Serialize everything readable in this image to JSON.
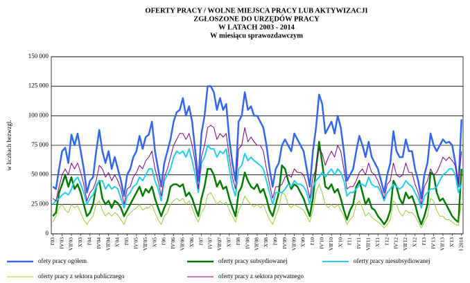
{
  "chart_data": {
    "type": "line",
    "title": [
      "OFERTY PRACY / WOLNE MIEJSCA  PRACY  LUB  AKTYWIZACJI",
      "ZGŁOSZONE  DO  URZĘDÓW  PRACY",
      "W  LATACH  2003 - 2014"
    ],
    "subtitle": "W  miesiącu  sprawozdawczym",
    "ylabel": "w liczbach bezwzgl.",
    "ylim": [
      0,
      150000
    ],
    "yticks": [
      0,
      {
        "value": 25000,
        "label": "25 000"
      },
      {
        "value": 50000,
        "label": "50 000"
      },
      {
        "value": 75000,
        "label": "75 000"
      },
      {
        "value": 100000,
        "label": "100 000"
      },
      {
        "value": 125000,
        "label": "125 000"
      },
      {
        "value": 150000,
        "label": "150 000"
      }
    ],
    "grid": true,
    "legend": "bottom",
    "categories": [
      "I'03",
      null,
      null,
      "IV'03",
      null,
      null,
      "VII'03",
      null,
      null,
      "X'03",
      null,
      null,
      "I'04",
      null,
      null,
      "IV'04",
      null,
      null,
      "VII'04",
      null,
      null,
      "X'04",
      null,
      null,
      "I'05",
      null,
      null,
      "IV'05",
      null,
      null,
      "VII'05",
      null,
      null,
      "X'05",
      null,
      null,
      "I'06",
      null,
      null,
      "IV'06",
      null,
      null,
      "VII'06",
      null,
      null,
      "X'06",
      null,
      null,
      "I'07",
      null,
      null,
      "IV'07",
      null,
      null,
      "VII'07",
      null,
      null,
      "X'07",
      null,
      null,
      "I'08",
      null,
      null,
      "IV'08",
      null,
      null,
      "VII'08",
      null,
      null,
      "X'08",
      null,
      null,
      "I'09",
      null,
      null,
      "IV'09",
      null,
      null,
      "VII'09",
      null,
      null,
      "X'09",
      null,
      null,
      "I'10",
      null,
      null,
      "IV'10",
      null,
      null,
      "VII'10",
      null,
      null,
      "X'10",
      null,
      null,
      "I'11",
      null,
      null,
      "IV'11",
      null,
      null,
      "VII'11",
      null,
      null,
      "X'11",
      null,
      null,
      "I'12",
      null,
      null,
      "IV'12",
      null,
      null,
      "VII'12",
      null,
      null,
      "X'12",
      null,
      null,
      "I'13",
      null,
      null,
      "IV'13",
      null,
      null,
      "VII'13",
      null,
      null,
      "X'13",
      null,
      null,
      "I 2014"
    ],
    "series": [
      {
        "name": "ofety pracy ogółem",
        "color": "#3366ee",
        "width": 2.5,
        "values": [
          40000,
          38000,
          55000,
          70000,
          73000,
          60000,
          84000,
          75000,
          85000,
          70000,
          55000,
          35000,
          45000,
          48000,
          70000,
          88000,
          70000,
          60000,
          70000,
          55000,
          65000,
          55000,
          45000,
          32000,
          50000,
          55000,
          65000,
          70000,
          83000,
          72000,
          82000,
          84000,
          95000,
          70000,
          55000,
          40000,
          60000,
          70000,
          80000,
          95000,
          103000,
          105000,
          115000,
          100000,
          108000,
          95000,
          70000,
          45000,
          85000,
          100000,
          125000,
          125000,
          120000,
          105000,
          115000,
          105000,
          110000,
          80000,
          60000,
          45000,
          95000,
          100000,
          120000,
          105000,
          108000,
          100000,
          100000,
          95000,
          90000,
          75000,
          55000,
          40000,
          55000,
          60000,
          75000,
          80000,
          75000,
          70000,
          85000,
          80000,
          75000,
          70000,
          55000,
          40000,
          70000,
          90000,
          118000,
          110000,
          85000,
          90000,
          95000,
          85000,
          100000,
          90000,
          70000,
          45000,
          50000,
          55000,
          70000,
          83000,
          75000,
          65000,
          78000,
          65000,
          60000,
          55000,
          45000,
          35000,
          50000,
          60000,
          87000,
          70000,
          65000,
          65000,
          80000,
          70000,
          70000,
          55000,
          45000,
          30000,
          50000,
          60000,
          85000,
          75000,
          70000,
          75000,
          80000,
          77000,
          78000,
          75000,
          60000,
          40000,
          97000
        ]
      },
      {
        "name": "oferty pracy subsydiowanej",
        "color": "#007a00",
        "width": 2.5,
        "values": [
          15000,
          18000,
          35000,
          42000,
          50000,
          40000,
          48000,
          38000,
          42000,
          35000,
          25000,
          15000,
          18000,
          25000,
          40000,
          45000,
          30000,
          25000,
          28000,
          22000,
          28000,
          26000,
          22000,
          15000,
          20000,
          25000,
          30000,
          35000,
          40000,
          32000,
          38000,
          35000,
          40000,
          30000,
          22000,
          15000,
          22000,
          28000,
          40000,
          42000,
          42000,
          40000,
          42000,
          32000,
          35000,
          30000,
          22000,
          15000,
          30000,
          40000,
          55000,
          55000,
          50000,
          40000,
          45000,
          38000,
          40000,
          30000,
          22000,
          15000,
          35000,
          40000,
          52000,
          45000,
          40000,
          38000,
          42000,
          35000,
          38000,
          30000,
          20000,
          15000,
          25000,
          35000,
          58000,
          55000,
          45000,
          38000,
          42000,
          40000,
          35000,
          30000,
          22000,
          15000,
          30000,
          55000,
          78000,
          60000,
          40000,
          38000,
          42000,
          35000,
          38000,
          30000,
          20000,
          12000,
          20000,
          25000,
          40000,
          45000,
          35000,
          25000,
          30000,
          22000,
          20000,
          15000,
          12000,
          8000,
          12000,
          20000,
          45000,
          40000,
          30000,
          25000,
          35000,
          30000,
          32000,
          25000,
          15000,
          8000,
          15000,
          25000,
          52000,
          50000,
          35000,
          28000,
          30000,
          25000,
          20000,
          15000,
          12000,
          10000,
          55000
        ]
      },
      {
        "name": "oferty pracy niesubsydiowanej",
        "color": "#22ccee",
        "width": 2,
        "values": [
          25000,
          28000,
          30000,
          33000,
          35000,
          33000,
          38000,
          45000,
          48000,
          42000,
          35000,
          25000,
          30000,
          33000,
          40000,
          45000,
          45000,
          38000,
          42000,
          38000,
          40000,
          38000,
          30000,
          22000,
          32000,
          35000,
          40000,
          42000,
          48000,
          45000,
          50000,
          55000,
          55000,
          45000,
          38000,
          28000,
          45000,
          50000,
          55000,
          65000,
          70000,
          68000,
          70000,
          65000,
          72000,
          62000,
          50000,
          35000,
          60000,
          65000,
          75000,
          72000,
          72000,
          65000,
          70000,
          68000,
          72000,
          55000,
          40000,
          32000,
          55000,
          58000,
          68000,
          62000,
          65000,
          62000,
          60000,
          58000,
          55000,
          45000,
          35000,
          25000,
          35000,
          35000,
          35000,
          38000,
          42000,
          40000,
          45000,
          42000,
          42000,
          40000,
          35000,
          25000,
          40000,
          45000,
          48000,
          52000,
          48000,
          52000,
          55000,
          50000,
          55000,
          52000,
          45000,
          32000,
          35000,
          35000,
          38000,
          42000,
          42000,
          40000,
          48000,
          42000,
          40000,
          40000,
          35000,
          28000,
          35000,
          38000,
          42000,
          40000,
          38000,
          40000,
          45000,
          42000,
          40000,
          35000,
          30000,
          22000,
          32000,
          35000,
          38000,
          38000,
          40000,
          45000,
          50000,
          52000,
          55000,
          55000,
          50000,
          35000,
          42000
        ]
      },
      {
        "name": "oferty pracy z sektora publicznego",
        "color": "#99cc33",
        "width": 1,
        "values": [
          10000,
          15000,
          22000,
          25000,
          20000,
          18000,
          25000,
          22000,
          24000,
          18000,
          12000,
          8000,
          12000,
          15000,
          25000,
          28000,
          20000,
          15000,
          18000,
          15000,
          18000,
          16000,
          12000,
          8000,
          15000,
          18000,
          20000,
          22000,
          25000,
          20000,
          22000,
          22000,
          25000,
          18000,
          12000,
          8000,
          15000,
          18000,
          25000,
          28000,
          30000,
          28000,
          30000,
          25000,
          28000,
          22000,
          15000,
          10000,
          18000,
          22000,
          33000,
          35000,
          30000,
          25000,
          28000,
          25000,
          27000,
          20000,
          15000,
          10000,
          20000,
          25000,
          32000,
          28000,
          25000,
          23000,
          25000,
          22000,
          25000,
          18000,
          12000,
          8000,
          15000,
          22000,
          35000,
          33000,
          25000,
          22000,
          25000,
          23000,
          22000,
          20000,
          15000,
          10000,
          20000,
          35000,
          42000,
          35000,
          25000,
          22000,
          25000,
          22000,
          25000,
          20000,
          15000,
          8000,
          12000,
          15000,
          25000,
          28000,
          22000,
          15000,
          18000,
          14000,
          12000,
          10000,
          8000,
          5000,
          8000,
          12000,
          28000,
          25000,
          18000,
          15000,
          20000,
          18000,
          18000,
          15000,
          10000,
          5000,
          10000,
          15000,
          30000,
          28000,
          20000,
          15000,
          15000,
          12000,
          12000,
          10000,
          8000,
          7000,
          27000
        ]
      },
      {
        "name": "oferty pracy z sektora prywatnego",
        "color": "#800080",
        "width": 1,
        "values": [
          30000,
          28000,
          40000,
          50000,
          55000,
          50000,
          60000,
          55000,
          60000,
          52000,
          42000,
          28000,
          35000,
          38000,
          45000,
          58000,
          55000,
          48000,
          52000,
          45000,
          50000,
          45000,
          38000,
          25000,
          38000,
          40000,
          48000,
          52000,
          58000,
          55000,
          62000,
          65000,
          70000,
          55000,
          45000,
          32000,
          48000,
          55000,
          65000,
          75000,
          80000,
          85000,
          85000,
          80000,
          85000,
          75000,
          60000,
          38000,
          65000,
          75000,
          90000,
          92000,
          90000,
          80000,
          85000,
          82000,
          85000,
          65000,
          48000,
          38000,
          72000,
          75000,
          90000,
          78000,
          82000,
          78000,
          75000,
          75000,
          70000,
          55000,
          42000,
          30000,
          40000,
          40000,
          42000,
          48000,
          50000,
          48000,
          55000,
          52000,
          52000,
          50000,
          42000,
          30000,
          48000,
          55000,
          72000,
          68000,
          58000,
          65000,
          70000,
          65000,
          75000,
          70000,
          55000,
          38000,
          40000,
          40000,
          45000,
          52000,
          55000,
          50000,
          60000,
          52000,
          50000,
          45000,
          38000,
          30000,
          42000,
          45000,
          60000,
          50000,
          48000,
          50000,
          60000,
          52000,
          52000,
          42000,
          35000,
          25000,
          40000,
          45000,
          55000,
          50000,
          52000,
          58000,
          65000,
          62000,
          65000,
          62000,
          58000,
          42000,
          70000
        ]
      }
    ]
  }
}
